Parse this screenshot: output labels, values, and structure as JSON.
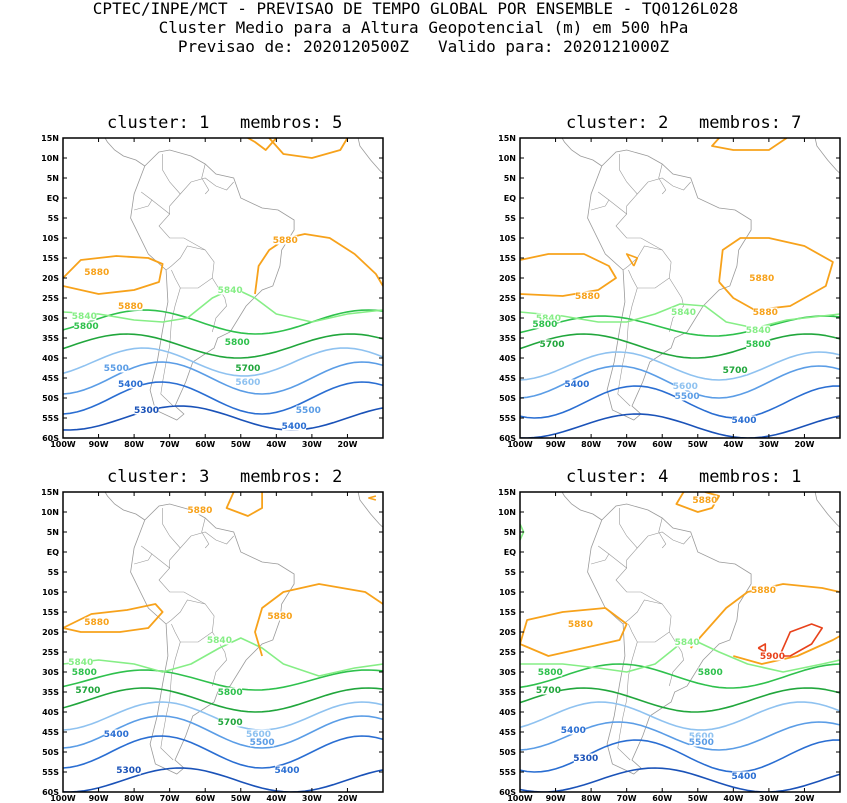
{
  "header": {
    "line1": "CPTEC/INPE/MCT - PREVISAO DE TEMPO GLOBAL POR ENSEMBLE - TQ0126L028",
    "line2": "Cluster Medio para a Altura Geopotencial (m) em 500 hPa",
    "line3": "Previsao de: 2020120500Z   Valido para: 2020121000Z"
  },
  "axes": {
    "lat_labels": [
      "15N",
      "10N",
      "5N",
      "EQ",
      "5S",
      "10S",
      "15S",
      "20S",
      "25S",
      "30S",
      "35S",
      "40S",
      "45S",
      "50S",
      "55S",
      "60S"
    ],
    "lon_labels": [
      "100W",
      "90W",
      "80W",
      "70W",
      "60W",
      "50W",
      "40W",
      "30W",
      "20W"
    ]
  },
  "colors": {
    "5300": "#1a52b8",
    "5400": "#2a6ed2",
    "5500": "#5b9de6",
    "5600": "#8fc2f0",
    "5700": "#21a63c",
    "5800": "#2fc14d",
    "5840": "#86ee86",
    "5880": "#f7a21b",
    "5900": "#e8421b",
    "land": "#9a9a9a",
    "frame": "#000000"
  },
  "panels": [
    {
      "title": "cluster: 1   membros: 5",
      "labels": [
        {
          "text": "5880",
          "lon": -90.5,
          "lat": -18.5,
          "c": "5880"
        },
        {
          "text": "5880",
          "lon": -81,
          "lat": -27,
          "c": "5880"
        },
        {
          "text": "5880",
          "lon": -37.5,
          "lat": -10.5,
          "c": "5880"
        },
        {
          "text": "5840",
          "lon": -94,
          "lat": -29.5,
          "c": "5840"
        },
        {
          "text": "5840",
          "lon": -53,
          "lat": -23,
          "c": "5840"
        },
        {
          "text": "5800",
          "lon": -93.5,
          "lat": -32,
          "c": "5800"
        },
        {
          "text": "5800",
          "lon": -51,
          "lat": -36,
          "c": "5800"
        },
        {
          "text": "5700",
          "lon": -48,
          "lat": -42.5,
          "c": "5700"
        },
        {
          "text": "5600",
          "lon": -48,
          "lat": -46,
          "c": "5600"
        },
        {
          "text": "5500",
          "lon": -85,
          "lat": -42.5,
          "c": "5500"
        },
        {
          "text": "5500",
          "lon": -31,
          "lat": -53,
          "c": "5500"
        },
        {
          "text": "5400",
          "lon": -81,
          "lat": -46.5,
          "c": "5400"
        },
        {
          "text": "5400",
          "lon": -35,
          "lat": -57,
          "c": "5400"
        },
        {
          "text": "5300",
          "lon": -76.5,
          "lat": -53,
          "c": "5300"
        }
      ]
    },
    {
      "title": "cluster: 2   membros: 7",
      "labels": [
        {
          "text": "5880",
          "lon": -81,
          "lat": -24.5,
          "c": "5880"
        },
        {
          "text": "5880",
          "lon": -32,
          "lat": -20,
          "c": "5880"
        },
        {
          "text": "5880",
          "lon": -31,
          "lat": -28.5,
          "c": "5880"
        },
        {
          "text": "5840",
          "lon": -92,
          "lat": -30,
          "c": "5840"
        },
        {
          "text": "5840",
          "lon": -54,
          "lat": -28.5,
          "c": "5840"
        },
        {
          "text": "5840",
          "lon": -33,
          "lat": -33,
          "c": "5840"
        },
        {
          "text": "5800",
          "lon": -93,
          "lat": -31.5,
          "c": "5800"
        },
        {
          "text": "5800",
          "lon": -33,
          "lat": -36.5,
          "c": "5800"
        },
        {
          "text": "5700",
          "lon": -91,
          "lat": -36.5,
          "c": "5700"
        },
        {
          "text": "5700",
          "lon": -39.5,
          "lat": -43,
          "c": "5700"
        },
        {
          "text": "5600",
          "lon": -53.5,
          "lat": -47,
          "c": "5600"
        },
        {
          "text": "5500",
          "lon": -53,
          "lat": -49.5,
          "c": "5500"
        },
        {
          "text": "5400",
          "lon": -84,
          "lat": -46.5,
          "c": "5400"
        },
        {
          "text": "5400",
          "lon": -37,
          "lat": -55.5,
          "c": "5400"
        }
      ]
    },
    {
      "title": "cluster: 3   membros: 2",
      "labels": [
        {
          "text": "5880",
          "lon": -90.5,
          "lat": -17.5,
          "c": "5880"
        },
        {
          "text": "5880",
          "lon": -39,
          "lat": -16,
          "c": "5880"
        },
        {
          "text": "5880",
          "lon": -61.5,
          "lat": 10.5,
          "c": "5880"
        },
        {
          "text": "5840",
          "lon": -95,
          "lat": -27.5,
          "c": "5840"
        },
        {
          "text": "5840",
          "lon": -56,
          "lat": -22,
          "c": "5840"
        },
        {
          "text": "5800",
          "lon": -94,
          "lat": -30,
          "c": "5800"
        },
        {
          "text": "5800",
          "lon": -53,
          "lat": -35,
          "c": "5800"
        },
        {
          "text": "5700",
          "lon": -93,
          "lat": -34.5,
          "c": "5700"
        },
        {
          "text": "5700",
          "lon": -53,
          "lat": -42.5,
          "c": "5700"
        },
        {
          "text": "5600",
          "lon": -45,
          "lat": -45.5,
          "c": "5600"
        },
        {
          "text": "5500",
          "lon": -44,
          "lat": -47.5,
          "c": "5500"
        },
        {
          "text": "5400",
          "lon": -85,
          "lat": -45.5,
          "c": "5400"
        },
        {
          "text": "5400",
          "lon": -37,
          "lat": -54.5,
          "c": "5400"
        },
        {
          "text": "5300",
          "lon": -81.5,
          "lat": -54.5,
          "c": "5300"
        }
      ]
    },
    {
      "title": "cluster: 4   membros: 1",
      "labels": [
        {
          "text": "5880",
          "lon": -48,
          "lat": 13,
          "c": "5880"
        },
        {
          "text": "5880",
          "lon": -83,
          "lat": -18,
          "c": "5880"
        },
        {
          "text": "5880",
          "lon": -31.5,
          "lat": -9.5,
          "c": "5880"
        },
        {
          "text": "5900",
          "lon": -29,
          "lat": -26,
          "c": "5900"
        },
        {
          "text": "5840",
          "lon": -53,
          "lat": -22.5,
          "c": "5840"
        },
        {
          "text": "5800",
          "lon": -91.5,
          "lat": -30,
          "c": "5800"
        },
        {
          "text": "5800",
          "lon": -46.5,
          "lat": -30,
          "c": "5800"
        },
        {
          "text": "5700",
          "lon": -92,
          "lat": -34.5,
          "c": "5700"
        },
        {
          "text": "5600",
          "lon": -49,
          "lat": -46,
          "c": "5600"
        },
        {
          "text": "5500",
          "lon": -49,
          "lat": -47.5,
          "c": "5500"
        },
        {
          "text": "5400",
          "lon": -85,
          "lat": -44.5,
          "c": "5400"
        },
        {
          "text": "5400",
          "lon": -37,
          "lat": -56,
          "c": "5400"
        },
        {
          "text": "5300",
          "lon": -81.5,
          "lat": -51.5,
          "c": "5300"
        }
      ]
    }
  ]
}
